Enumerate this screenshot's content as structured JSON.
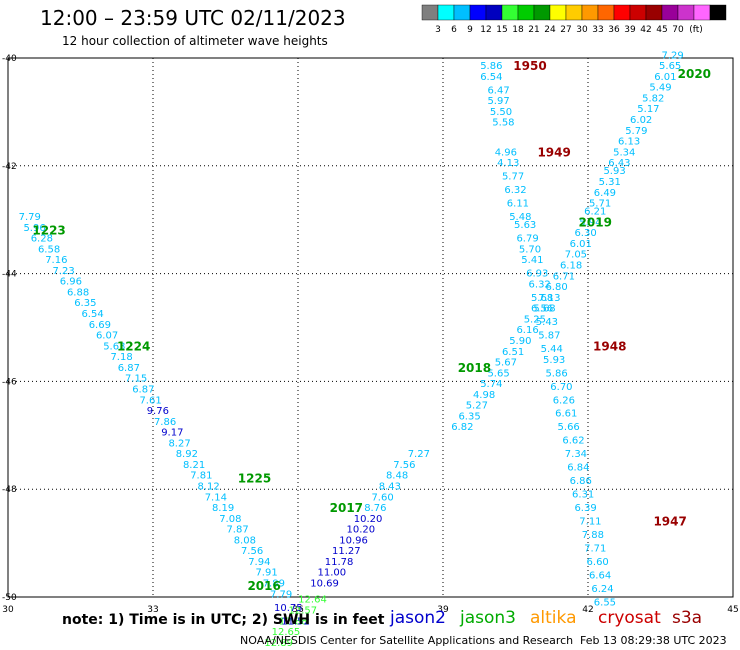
{
  "header": {
    "title": "12:00 – 23:59 UTC 02/11/2023",
    "subtitle": "12 hour collection of altimeter wave heights"
  },
  "colorbar": {
    "colors": [
      "#7f7f7f",
      "#00ffff",
      "#00bfff",
      "#0000ff",
      "#0000bf",
      "#33ff33",
      "#00cc00",
      "#009900",
      "#ffff00",
      "#ffcc00",
      "#ff9900",
      "#ff6600",
      "#ff0000",
      "#cc0000",
      "#990000",
      "#990099",
      "#cc33cc",
      "#ff66ff",
      "#000000"
    ],
    "labels": [
      "3",
      "6",
      "9",
      "12",
      "15",
      "18",
      "21",
      "24",
      "27",
      "30",
      "33",
      "36",
      "39",
      "42",
      "45",
      "70"
    ],
    "unit": "(ft)"
  },
  "footer": {
    "note": "note:  1) Time is in UTC;  2) SWH is in feet",
    "credit": "NOAA/NESDIS Center for Satellite Applications and Research",
    "timestamp": "Feb 13 08:29:38 UTC 2023",
    "satellites": [
      {
        "name": "jason2",
        "color": "#0000cc"
      },
      {
        "name": "jason3",
        "color": "#00aa00"
      },
      {
        "name": "altika",
        "color": "#ff9900"
      },
      {
        "name": "cryosat",
        "color": "#cc0000"
      },
      {
        "name": "s3a",
        "color": "#990000"
      }
    ]
  },
  "chart_data": {
    "type": "scatter",
    "title": "12:00 – 23:59 UTC 02/11/2023",
    "xlim": [
      30,
      45
    ],
    "ylim": [
      -50,
      -40
    ],
    "xticks": [
      "30",
      "33",
      "36",
      "39",
      "42",
      "45"
    ],
    "yticks": [
      "-40",
      "-42",
      "-44",
      "-46",
      "-48",
      "-50"
    ],
    "grid": true,
    "track_labels": [
      {
        "text": "1950",
        "x": 40.8,
        "y": -40.15,
        "color": "#990000"
      },
      {
        "text": "1949",
        "x": 41.3,
        "y": -41.75,
        "color": "#990000"
      },
      {
        "text": "2020",
        "x": 44.2,
        "y": -40.3,
        "color": "#009900"
      },
      {
        "text": "2019",
        "x": 42.15,
        "y": -43.05,
        "color": "#009900"
      },
      {
        "text": "1223",
        "x": 30.85,
        "y": -43.2,
        "color": "#009900"
      },
      {
        "text": "1224",
        "x": 32.6,
        "y": -45.35,
        "color": "#009900"
      },
      {
        "text": "1948",
        "x": 42.45,
        "y": -45.35,
        "color": "#990000"
      },
      {
        "text": "2018",
        "x": 39.65,
        "y": -45.75,
        "color": "#009900"
      },
      {
        "text": "1225",
        "x": 35.1,
        "y": -47.8,
        "color": "#009900"
      },
      {
        "text": "2017",
        "x": 37.0,
        "y": -48.35,
        "color": "#009900"
      },
      {
        "text": "1947",
        "x": 43.7,
        "y": -48.6,
        "color": "#990000"
      },
      {
        "text": "2016",
        "x": 35.3,
        "y": -49.8,
        "color": "#009900"
      }
    ],
    "points": [
      {
        "x": 40.0,
        "y": -40.15,
        "v": "5.86",
        "c": "#00bfff"
      },
      {
        "x": 40.0,
        "y": -40.35,
        "v": "6.54",
        "c": "#00bfff"
      },
      {
        "x": 40.15,
        "y": -40.6,
        "v": "6.47",
        "c": "#00bfff"
      },
      {
        "x": 40.15,
        "y": -40.8,
        "v": "5.97",
        "c": "#00bfff"
      },
      {
        "x": 40.2,
        "y": -41.0,
        "v": "5.50",
        "c": "#00bfff"
      },
      {
        "x": 40.25,
        "y": -41.2,
        "v": "5.58",
        "c": "#00bfff"
      },
      {
        "x": 40.3,
        "y": -41.75,
        "v": "4.96",
        "c": "#00bfff"
      },
      {
        "x": 40.35,
        "y": -41.95,
        "v": "4.13",
        "c": "#00bfff"
      },
      {
        "x": 40.45,
        "y": -42.2,
        "v": "5.77",
        "c": "#00bfff"
      },
      {
        "x": 40.5,
        "y": -42.45,
        "v": "6.32",
        "c": "#00bfff"
      },
      {
        "x": 40.55,
        "y": -42.7,
        "v": "6.11",
        "c": "#00bfff"
      },
      {
        "x": 40.6,
        "y": -42.95,
        "v": "5.48",
        "c": "#00bfff"
      },
      {
        "x": 40.7,
        "y": -43.1,
        "v": "5.63",
        "c": "#00bfff"
      },
      {
        "x": 40.75,
        "y": -43.35,
        "v": "6.79",
        "c": "#00bfff"
      },
      {
        "x": 40.8,
        "y": -43.55,
        "v": "5.70",
        "c": "#00bfff"
      },
      {
        "x": 40.85,
        "y": -43.75,
        "v": "5.41",
        "c": "#00bfff"
      },
      {
        "x": 40.95,
        "y": -44.0,
        "v": "6.93",
        "c": "#00bfff"
      },
      {
        "x": 41.0,
        "y": -44.2,
        "v": "6.32",
        "c": "#00bfff"
      },
      {
        "x": 41.05,
        "y": -44.45,
        "v": "5.68",
        "c": "#00bfff"
      },
      {
        "x": 41.1,
        "y": -44.65,
        "v": "5.68",
        "c": "#00bfff"
      },
      {
        "x": 41.15,
        "y": -44.9,
        "v": "5.43",
        "c": "#00bfff"
      },
      {
        "x": 41.2,
        "y": -45.15,
        "v": "5.87",
        "c": "#00bfff"
      },
      {
        "x": 41.25,
        "y": -45.4,
        "v": "5.44",
        "c": "#00bfff"
      },
      {
        "x": 41.3,
        "y": -45.6,
        "v": "5.93",
        "c": "#00bfff"
      },
      {
        "x": 41.35,
        "y": -45.85,
        "v": "5.86",
        "c": "#00bfff"
      },
      {
        "x": 41.45,
        "y": -46.1,
        "v": "6.70",
        "c": "#00bfff"
      },
      {
        "x": 41.5,
        "y": -46.35,
        "v": "6.26",
        "c": "#00bfff"
      },
      {
        "x": 41.55,
        "y": -46.6,
        "v": "6.61",
        "c": "#00bfff"
      },
      {
        "x": 41.6,
        "y": -46.85,
        "v": "5.66",
        "c": "#00bfff"
      },
      {
        "x": 41.7,
        "y": -47.1,
        "v": "6.62",
        "c": "#00bfff"
      },
      {
        "x": 41.75,
        "y": -47.35,
        "v": "7.34",
        "c": "#00bfff"
      },
      {
        "x": 41.8,
        "y": -47.6,
        "v": "6.84",
        "c": "#00bfff"
      },
      {
        "x": 41.85,
        "y": -47.85,
        "v": "6.86",
        "c": "#00bfff"
      },
      {
        "x": 41.9,
        "y": -48.1,
        "v": "6.31",
        "c": "#00bfff"
      },
      {
        "x": 41.95,
        "y": -48.35,
        "v": "6.39",
        "c": "#00bfff"
      },
      {
        "x": 42.05,
        "y": -48.6,
        "v": "7.11",
        "c": "#00bfff"
      },
      {
        "x": 42.1,
        "y": -48.85,
        "v": "7.88",
        "c": "#00bfff"
      },
      {
        "x": 42.15,
        "y": -49.1,
        "v": "7.71",
        "c": "#00bfff"
      },
      {
        "x": 42.2,
        "y": -49.35,
        "v": "6.60",
        "c": "#00bfff"
      },
      {
        "x": 42.25,
        "y": -49.6,
        "v": "6.64",
        "c": "#00bfff"
      },
      {
        "x": 42.3,
        "y": -49.85,
        "v": "6.24",
        "c": "#00bfff"
      },
      {
        "x": 42.35,
        "y": -50.1,
        "v": "6.55",
        "c": "#00bfff"
      },
      {
        "x": 43.75,
        "y": -39.95,
        "v": "7.29",
        "c": "#00bfff"
      },
      {
        "x": 43.7,
        "y": -40.15,
        "v": "5.65",
        "c": "#00bfff"
      },
      {
        "x": 43.6,
        "y": -40.35,
        "v": "6.01",
        "c": "#00bfff"
      },
      {
        "x": 43.5,
        "y": -40.55,
        "v": "5.49",
        "c": "#00bfff"
      },
      {
        "x": 43.35,
        "y": -40.75,
        "v": "5.82",
        "c": "#00bfff"
      },
      {
        "x": 43.25,
        "y": -40.95,
        "v": "5.17",
        "c": "#00bfff"
      },
      {
        "x": 43.1,
        "y": -41.15,
        "v": "6.02",
        "c": "#00bfff"
      },
      {
        "x": 43.0,
        "y": -41.35,
        "v": "5.79",
        "c": "#00bfff"
      },
      {
        "x": 42.85,
        "y": -41.55,
        "v": "6.13",
        "c": "#00bfff"
      },
      {
        "x": 42.75,
        "y": -41.75,
        "v": "5.34",
        "c": "#00bfff"
      },
      {
        "x": 42.65,
        "y": -41.95,
        "v": "6.43",
        "c": "#00bfff"
      },
      {
        "x": 42.55,
        "y": -42.1,
        "v": "5.93",
        "c": "#00bfff"
      },
      {
        "x": 42.45,
        "y": -42.3,
        "v": "5.31",
        "c": "#00bfff"
      },
      {
        "x": 42.35,
        "y": -42.5,
        "v": "6.49",
        "c": "#00bfff"
      },
      {
        "x": 42.25,
        "y": -42.7,
        "v": "5.71",
        "c": "#00bfff"
      },
      {
        "x": 42.15,
        "y": -42.85,
        "v": "6.21",
        "c": "#00bfff"
      },
      {
        "x": 42.05,
        "y": -43.05,
        "v": "5.94",
        "c": "#00bfff"
      },
      {
        "x": 41.95,
        "y": -43.25,
        "v": "6.30",
        "c": "#00bfff"
      },
      {
        "x": 41.85,
        "y": -43.45,
        "v": "6.01",
        "c": "#00bfff"
      },
      {
        "x": 41.75,
        "y": -43.65,
        "v": "7.05",
        "c": "#00bfff"
      },
      {
        "x": 41.65,
        "y": -43.85,
        "v": "6.18",
        "c": "#00bfff"
      },
      {
        "x": 41.5,
        "y": -44.05,
        "v": "6.71",
        "c": "#00bfff"
      },
      {
        "x": 41.35,
        "y": -44.25,
        "v": "6.80",
        "c": "#00bfff"
      },
      {
        "x": 41.2,
        "y": -44.45,
        "v": "7.13",
        "c": "#00bfff"
      },
      {
        "x": 41.05,
        "y": -44.65,
        "v": "6.56",
        "c": "#00bfff"
      },
      {
        "x": 40.9,
        "y": -44.85,
        "v": "5.25",
        "c": "#00bfff"
      },
      {
        "x": 40.75,
        "y": -45.05,
        "v": "6.16",
        "c": "#00bfff"
      },
      {
        "x": 40.6,
        "y": -45.25,
        "v": "5.90",
        "c": "#00bfff"
      },
      {
        "x": 40.45,
        "y": -45.45,
        "v": "6.51",
        "c": "#00bfff"
      },
      {
        "x": 40.3,
        "y": -45.65,
        "v": "5.67",
        "c": "#00bfff"
      },
      {
        "x": 40.15,
        "y": -45.85,
        "v": "5.65",
        "c": "#00bfff"
      },
      {
        "x": 40.0,
        "y": -46.05,
        "v": "5.74",
        "c": "#00bfff"
      },
      {
        "x": 39.85,
        "y": -46.25,
        "v": "4.98",
        "c": "#00bfff"
      },
      {
        "x": 39.7,
        "y": -46.45,
        "v": "5.27",
        "c": "#00bfff"
      },
      {
        "x": 39.55,
        "y": -46.65,
        "v": "6.35",
        "c": "#00bfff"
      },
      {
        "x": 39.4,
        "y": -46.85,
        "v": "6.82",
        "c": "#00bfff"
      },
      {
        "x": 38.5,
        "y": -47.35,
        "v": "7.27",
        "c": "#00bfff"
      },
      {
        "x": 38.2,
        "y": -47.55,
        "v": "7.56",
        "c": "#00bfff"
      },
      {
        "x": 38.05,
        "y": -47.75,
        "v": "8.48",
        "c": "#00bfff"
      },
      {
        "x": 37.9,
        "y": -47.95,
        "v": "8.43",
        "c": "#00bfff"
      },
      {
        "x": 37.75,
        "y": -48.15,
        "v": "7.60",
        "c": "#00bfff"
      },
      {
        "x": 37.6,
        "y": -48.35,
        "v": "8.76",
        "c": "#00bfff"
      },
      {
        "x": 37.45,
        "y": -48.55,
        "v": "10.20",
        "c": "#0000cc"
      },
      {
        "x": 37.3,
        "y": -48.75,
        "v": "10.20",
        "c": "#0000cc"
      },
      {
        "x": 37.15,
        "y": -48.95,
        "v": "10.96",
        "c": "#0000cc"
      },
      {
        "x": 37.0,
        "y": -49.15,
        "v": "11.27",
        "c": "#0000cc"
      },
      {
        "x": 36.85,
        "y": -49.35,
        "v": "11.78",
        "c": "#0000cc"
      },
      {
        "x": 36.7,
        "y": -49.55,
        "v": "11.00",
        "c": "#0000cc"
      },
      {
        "x": 36.55,
        "y": -49.75,
        "v": "10.69",
        "c": "#0000cc"
      },
      {
        "x": 36.3,
        "y": -50.05,
        "v": "12.64",
        "c": "#33ff33"
      },
      {
        "x": 36.1,
        "y": -50.25,
        "v": "12.57",
        "c": "#33ff33"
      },
      {
        "x": 35.9,
        "y": -50.45,
        "v": "12.88",
        "c": "#33ff33"
      },
      {
        "x": 35.75,
        "y": -50.65,
        "v": "12.65",
        "c": "#33ff33"
      },
      {
        "x": 35.6,
        "y": -50.85,
        "v": "12.89",
        "c": "#33ff33"
      },
      {
        "x": 30.45,
        "y": -42.95,
        "v": "7.79",
        "c": "#00bfff"
      },
      {
        "x": 30.55,
        "y": -43.15,
        "v": "5.96",
        "c": "#00bfff"
      },
      {
        "x": 30.7,
        "y": -43.35,
        "v": "6.28",
        "c": "#00bfff"
      },
      {
        "x": 30.85,
        "y": -43.55,
        "v": "6.58",
        "c": "#00bfff"
      },
      {
        "x": 31.0,
        "y": -43.75,
        "v": "7.16",
        "c": "#00bfff"
      },
      {
        "x": 31.15,
        "y": -43.95,
        "v": "7.23",
        "c": "#00bfff"
      },
      {
        "x": 31.3,
        "y": -44.15,
        "v": "6.96",
        "c": "#00bfff"
      },
      {
        "x": 31.45,
        "y": -44.35,
        "v": "6.88",
        "c": "#00bfff"
      },
      {
        "x": 31.6,
        "y": -44.55,
        "v": "6.35",
        "c": "#00bfff"
      },
      {
        "x": 31.75,
        "y": -44.75,
        "v": "6.54",
        "c": "#00bfff"
      },
      {
        "x": 31.9,
        "y": -44.95,
        "v": "6.69",
        "c": "#00bfff"
      },
      {
        "x": 32.05,
        "y": -45.15,
        "v": "6.07",
        "c": "#00bfff"
      },
      {
        "x": 32.2,
        "y": -45.35,
        "v": "5.63",
        "c": "#00bfff"
      },
      {
        "x": 32.35,
        "y": -45.55,
        "v": "7.18",
        "c": "#00bfff"
      },
      {
        "x": 32.5,
        "y": -45.75,
        "v": "6.87",
        "c": "#00bfff"
      },
      {
        "x": 32.65,
        "y": -45.95,
        "v": "7.15",
        "c": "#00bfff"
      },
      {
        "x": 32.8,
        "y": -46.15,
        "v": "6.87",
        "c": "#00bfff"
      },
      {
        "x": 32.95,
        "y": -46.35,
        "v": "7.61",
        "c": "#00bfff"
      },
      {
        "x": 33.1,
        "y": -46.55,
        "v": "9.76",
        "c": "#0000cc"
      },
      {
        "x": 33.25,
        "y": -46.75,
        "v": "7.86",
        "c": "#00bfff"
      },
      {
        "x": 33.4,
        "y": -46.95,
        "v": "9.17",
        "c": "#0000cc"
      },
      {
        "x": 33.55,
        "y": -47.15,
        "v": "8.27",
        "c": "#00bfff"
      },
      {
        "x": 33.7,
        "y": -47.35,
        "v": "8.92",
        "c": "#00bfff"
      },
      {
        "x": 33.85,
        "y": -47.55,
        "v": "8.21",
        "c": "#00bfff"
      },
      {
        "x": 34.0,
        "y": -47.75,
        "v": "7.81",
        "c": "#00bfff"
      },
      {
        "x": 34.15,
        "y": -47.95,
        "v": "8.12",
        "c": "#00bfff"
      },
      {
        "x": 34.3,
        "y": -48.15,
        "v": "7.14",
        "c": "#00bfff"
      },
      {
        "x": 34.45,
        "y": -48.35,
        "v": "8.19",
        "c": "#00bfff"
      },
      {
        "x": 34.6,
        "y": -48.55,
        "v": "7.08",
        "c": "#00bfff"
      },
      {
        "x": 34.75,
        "y": -48.75,
        "v": "7.87",
        "c": "#00bfff"
      },
      {
        "x": 34.9,
        "y": -48.95,
        "v": "8.08",
        "c": "#00bfff"
      },
      {
        "x": 35.05,
        "y": -49.15,
        "v": "7.56",
        "c": "#00bfff"
      },
      {
        "x": 35.2,
        "y": -49.35,
        "v": "7.94",
        "c": "#00bfff"
      },
      {
        "x": 35.35,
        "y": -49.55,
        "v": "7.91",
        "c": "#00bfff"
      },
      {
        "x": 35.5,
        "y": -49.75,
        "v": "7.89",
        "c": "#00bfff"
      },
      {
        "x": 35.65,
        "y": -49.95,
        "v": "7.79",
        "c": "#00bfff"
      },
      {
        "x": 35.8,
        "y": -50.2,
        "v": "10.75",
        "c": "#0000cc"
      },
      {
        "x": 35.95,
        "y": -50.45,
        "v": "11.52",
        "c": "#0000cc"
      }
    ]
  }
}
